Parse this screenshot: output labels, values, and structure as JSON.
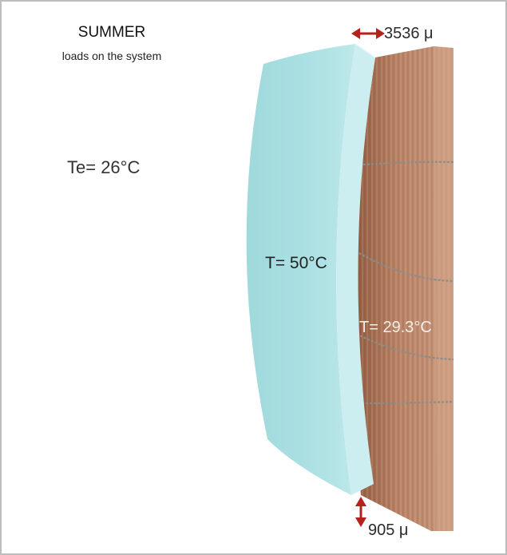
{
  "header": {
    "title": "SUMMER",
    "subtitle": "loads on the system"
  },
  "labels": {
    "external_temperature": "Te= 26°C",
    "glass_temperature": "T= 50°C",
    "wood_temperature": "T= 29.3°C"
  },
  "measurements": {
    "horizontal_displacement": "3536 μ",
    "vertical_displacement": "905 μ"
  },
  "colors": {
    "glass_face": "#a9dfe1",
    "glass_edge": "#d3f0f1",
    "wood_dark": "#a36d4f",
    "wood_light": "#c8967a",
    "arrow": "#b3231b",
    "frame_border": "#bdbdbd"
  },
  "icons": {
    "horizontal_arrow": "double-headed-horizontal-arrow",
    "vertical_arrow": "double-headed-vertical-arrow"
  }
}
